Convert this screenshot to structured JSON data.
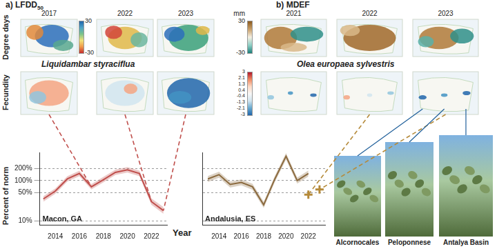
{
  "figure": {
    "panels": [
      {
        "label": "a) LFDD",
        "subscript": "50",
        "species": "Liquidambar styraciflua",
        "years": [
          "2017",
          "2022",
          "2023"
        ],
        "colorbar": {
          "range": [
            -30,
            30
          ],
          "ticks": [
            30,
            -30
          ]
        }
      },
      {
        "label": "b) MDEF",
        "species": "Olea europaea sylvestris",
        "years": [
          "2021",
          "2022",
          "2023"
        ],
        "colorbar": {
          "unit": "mm",
          "range": [
            -30,
            30
          ],
          "ticks": [
            30,
            -30
          ]
        }
      }
    ],
    "fecundity_colorbar": {
      "range": [
        -3,
        3
      ],
      "ticks": [
        3,
        2.1,
        1.3,
        0.4,
        -0.4,
        -1.3,
        -2.1,
        -3
      ]
    },
    "row_labels": [
      "Degree days",
      "Fecundity",
      "Percent of norm"
    ],
    "x_label": "Year",
    "photos": [
      "Alcornocales",
      "Peloponnese",
      "Antalya Basin"
    ]
  },
  "chart_data": [
    {
      "type": "line",
      "annotation": "Macon, GA",
      "x": [
        2013,
        2014,
        2015,
        2016,
        2017,
        2018,
        2019,
        2020,
        2021,
        2022,
        2023
      ],
      "values": [
        35,
        55,
        110,
        150,
        70,
        105,
        160,
        185,
        150,
        30,
        18
      ],
      "lower": [
        30,
        47,
        95,
        128,
        60,
        90,
        137,
        158,
        128,
        25,
        15
      ],
      "upper": [
        41,
        64,
        128,
        176,
        82,
        123,
        187,
        216,
        176,
        36,
        22
      ],
      "color": "#c0504d",
      "xlim": [
        2012.7,
        2023.3
      ],
      "xticks": [
        2014,
        2016,
        2018,
        2020,
        2022
      ],
      "ylim": [
        8,
        500
      ],
      "yticks": [
        {
          "value": 10,
          "label": "10%"
        },
        {
          "value": 50,
          "label": "50%"
        },
        {
          "value": 100,
          "label": "100%"
        },
        {
          "value": 200,
          "label": "200%"
        }
      ],
      "log": "y",
      "grid": true
    },
    {
      "type": "line",
      "annotation": "Andalusia, ES",
      "x": [
        2013,
        2014,
        2015,
        2016,
        2017,
        2018,
        2019,
        2020,
        2021,
        2022,
        2023
      ],
      "series": [
        {
          "color": "#8b6a3e",
          "values": [
            110,
            140,
            80,
            90,
            70,
            25,
            110,
            400,
            100,
            150,
            null
          ],
          "lower": [
            92,
            118,
            67,
            76,
            59,
            21,
            92,
            330,
            84,
            126,
            null
          ],
          "upper": [
            130,
            166,
            95,
            107,
            83,
            30,
            131,
            480,
            119,
            178,
            null
          ]
        },
        {
          "type": "scatter",
          "marker": "cross",
          "color": "#b58a3a",
          "values": [
            null,
            null,
            null,
            null,
            null,
            null,
            null,
            null,
            null,
            45,
            60
          ]
        }
      ],
      "xlim": [
        2012.5,
        2023.5
      ],
      "xticks": [
        2014,
        2016,
        2018,
        2020,
        2022
      ],
      "ylim": [
        8,
        500
      ],
      "yticks": [
        {
          "value": 10,
          "label": "10%"
        },
        {
          "value": 50,
          "label": "50%"
        },
        {
          "value": 100,
          "label": "100%"
        },
        {
          "value": 200,
          "label": "200%"
        }
      ],
      "log": "y",
      "grid": true,
      "tick_labels": "x"
    }
  ]
}
